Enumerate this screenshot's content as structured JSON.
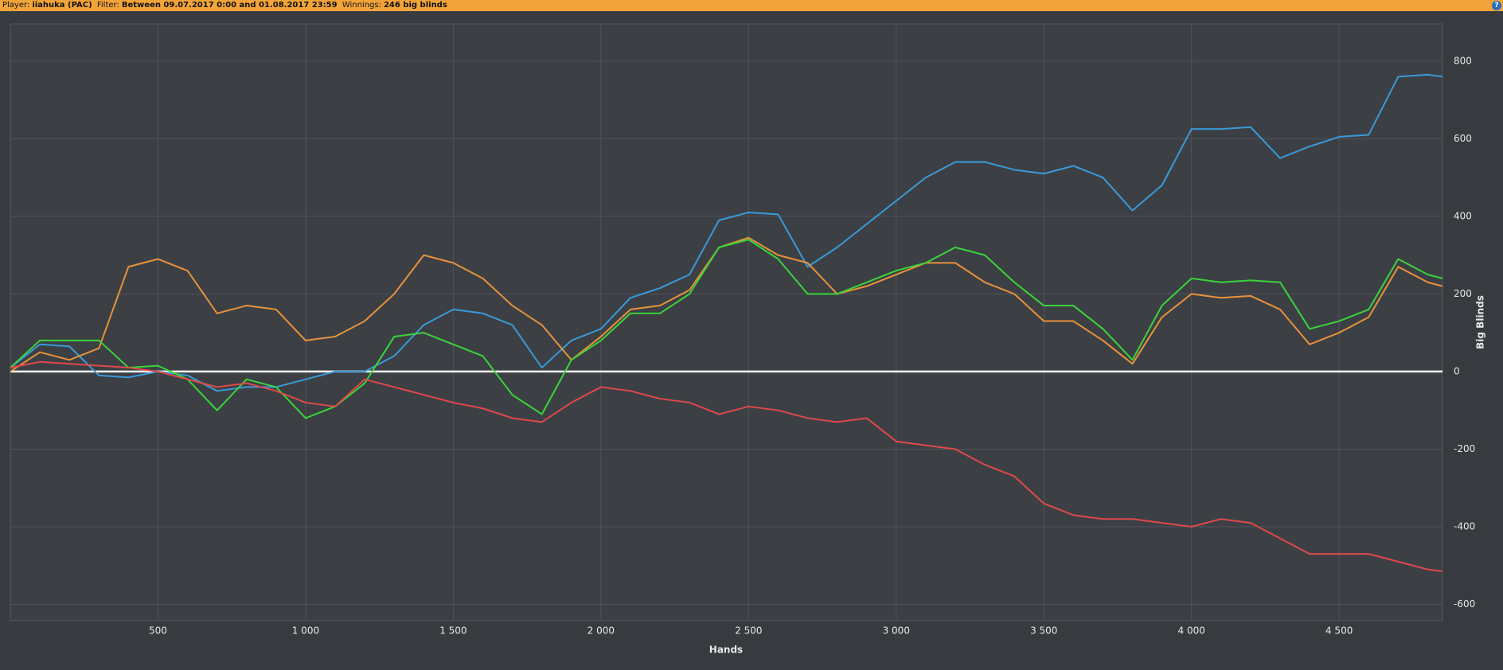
{
  "header": {
    "player_label": "Player:",
    "player": "iiahuka (PAC)",
    "filter_label": "Filter:",
    "filter": "Between 09.07.2017 0:00 and 01.08.2017 23:59",
    "winnings_label": "Winnings:",
    "winnings": "246 big blinds",
    "help": "?"
  },
  "chart_data": {
    "type": "line",
    "x_label": "Hands",
    "y_label": "Big Blinds",
    "xlim": [
      0,
      4850
    ],
    "ylim": [
      -642,
      896
    ],
    "xticks": [
      500,
      {
        "value": 1000,
        "label": "1 000"
      },
      {
        "value": 1500,
        "label": "1 500"
      },
      {
        "value": 2000,
        "label": "2 000"
      },
      {
        "value": 2500,
        "label": "2 500"
      },
      {
        "value": 3000,
        "label": "3 000"
      },
      {
        "value": 3500,
        "label": "3 500"
      },
      {
        "value": 4000,
        "label": "4 000"
      },
      {
        "value": 4500,
        "label": "4 500"
      }
    ],
    "yticks": [
      -600,
      -400,
      -200,
      0,
      200,
      400,
      600,
      800
    ],
    "grid": true,
    "x": [
      0,
      100,
      200,
      300,
      400,
      500,
      600,
      700,
      800,
      900,
      1000,
      1100,
      1200,
      1300,
      1400,
      1500,
      1600,
      1700,
      1800,
      1900,
      2000,
      2100,
      2200,
      2300,
      2400,
      2500,
      2600,
      2700,
      2800,
      2900,
      3000,
      3100,
      3200,
      3300,
      3400,
      3500,
      3600,
      3700,
      3800,
      3900,
      4000,
      4100,
      4200,
      4300,
      4400,
      4500,
      4600,
      4700,
      4800,
      4850
    ],
    "series": [
      {
        "color": "#3a9ad9",
        "values": [
          10,
          70,
          65,
          -10,
          -15,
          0,
          -10,
          -50,
          -40,
          -40,
          -20,
          0,
          0,
          40,
          120,
          160,
          150,
          120,
          10,
          80,
          110,
          190,
          215,
          250,
          390,
          410,
          405,
          270,
          320,
          380,
          440,
          500,
          540,
          540,
          520,
          510,
          530,
          500,
          415,
          480,
          625,
          625,
          630,
          550,
          580,
          605,
          610,
          760,
          765,
          760
        ]
      },
      {
        "color": "#e8913a",
        "values": [
          0,
          50,
          30,
          60,
          270,
          290,
          260,
          150,
          170,
          160,
          80,
          90,
          130,
          200,
          300,
          280,
          240,
          170,
          120,
          30,
          90,
          160,
          170,
          210,
          320,
          345,
          300,
          280,
          200,
          220,
          250,
          280,
          280,
          230,
          200,
          130,
          130,
          80,
          20,
          140,
          200,
          190,
          195,
          160,
          70,
          100,
          140,
          270,
          230,
          220
        ]
      },
      {
        "color": "#3ad43a",
        "values": [
          10,
          80,
          80,
          80,
          10,
          15,
          -20,
          -100,
          -20,
          -40,
          -120,
          -90,
          -30,
          90,
          100,
          70,
          40,
          -60,
          -110,
          30,
          80,
          150,
          150,
          200,
          320,
          340,
          290,
          200,
          200,
          230,
          260,
          280,
          320,
          300,
          230,
          170,
          170,
          110,
          30,
          170,
          240,
          230,
          235,
          230,
          110,
          130,
          160,
          290,
          250,
          240
        ]
      },
      {
        "color": "#e04848",
        "values": [
          10,
          25,
          20,
          15,
          10,
          0,
          -20,
          -40,
          -30,
          -50,
          -80,
          -90,
          -20,
          -40,
          -60,
          -80,
          -95,
          -120,
          -130,
          -80,
          -40,
          -50,
          -70,
          -80,
          -110,
          -90,
          -100,
          -120,
          -130,
          -120,
          -180,
          -190,
          -200,
          -240,
          -270,
          -340,
          -370,
          -380,
          -380,
          -390,
          -400,
          -380,
          -390,
          -430,
          -470,
          -470,
          -470,
          -490,
          -510,
          -515
        ]
      }
    ]
  }
}
